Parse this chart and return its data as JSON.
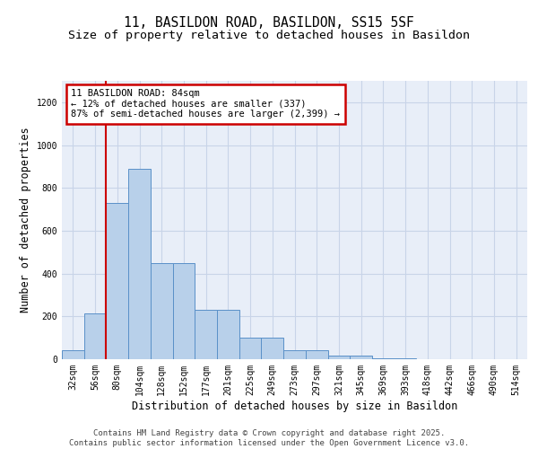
{
  "title_line1": "11, BASILDON ROAD, BASILDON, SS15 5SF",
  "title_line2": "Size of property relative to detached houses in Basildon",
  "xlabel": "Distribution of detached houses by size in Basildon",
  "ylabel": "Number of detached properties",
  "categories": [
    "32sqm",
    "56sqm",
    "80sqm",
    "104sqm",
    "128sqm",
    "152sqm",
    "177sqm",
    "201sqm",
    "225sqm",
    "249sqm",
    "273sqm",
    "297sqm",
    "321sqm",
    "345sqm",
    "369sqm",
    "393sqm",
    "418sqm",
    "442sqm",
    "466sqm",
    "490sqm",
    "514sqm"
  ],
  "values": [
    40,
    215,
    730,
    890,
    450,
    450,
    230,
    230,
    100,
    100,
    40,
    40,
    15,
    15,
    5,
    5,
    2,
    2,
    1,
    0,
    0
  ],
  "bar_color": "#b8d0ea",
  "bar_edge_color": "#5a90c8",
  "annotation_text": "11 BASILDON ROAD: 84sqm\n← 12% of detached houses are smaller (337)\n87% of semi-detached houses are larger (2,399) →",
  "annotation_box_color": "#ffffff",
  "annotation_box_edge": "#cc0000",
  "red_line_color": "#cc0000",
  "grid_color": "#c8d4e8",
  "background_color": "#e8eef8",
  "ylim": [
    0,
    1300
  ],
  "yticks": [
    0,
    200,
    400,
    600,
    800,
    1000,
    1200
  ],
  "footer": "Contains HM Land Registry data © Crown copyright and database right 2025.\nContains public sector information licensed under the Open Government Licence v3.0.",
  "title_fontsize": 10.5,
  "subtitle_fontsize": 9.5,
  "axis_label_fontsize": 8.5,
  "tick_fontsize": 7,
  "annotation_fontsize": 7.5,
  "footer_fontsize": 6.5
}
